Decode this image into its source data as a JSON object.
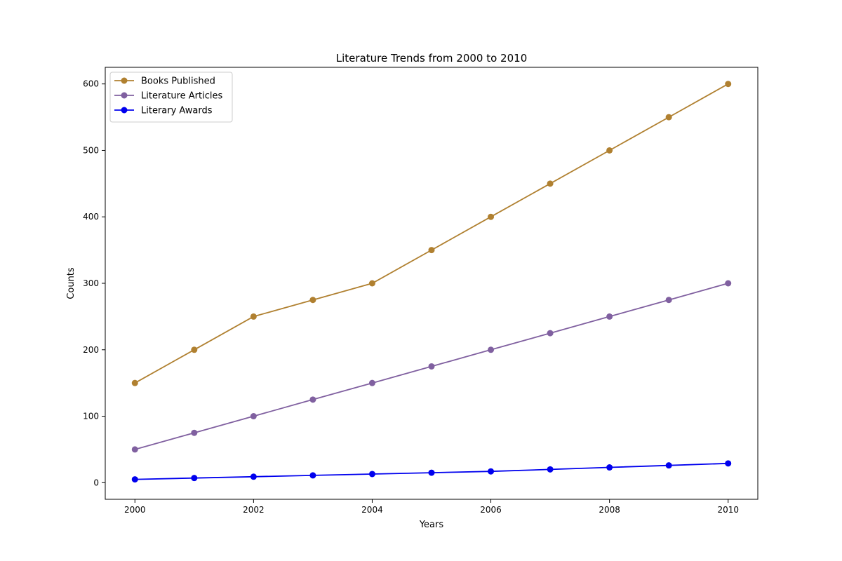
{
  "chart_data": {
    "type": "line",
    "title": "Literature Trends from 2000 to 2010",
    "xlabel": "Years",
    "ylabel": "Counts",
    "x": [
      2000,
      2001,
      2002,
      2003,
      2004,
      2005,
      2006,
      2007,
      2008,
      2009,
      2010
    ],
    "xlim": [
      1999.5,
      2010.5
    ],
    "ylim": [
      -25,
      625
    ],
    "xticks": [
      2000,
      2002,
      2004,
      2006,
      2008,
      2010
    ],
    "xtick_labels": [
      "2000",
      "2002",
      "2004",
      "2006",
      "2008",
      "2010"
    ],
    "yticks": [
      0,
      100,
      200,
      300,
      400,
      500,
      600
    ],
    "ytick_labels": [
      "0",
      "100",
      "200",
      "300",
      "400",
      "500",
      "600"
    ],
    "grid": false,
    "legend": "upper-left",
    "series": [
      {
        "name": "Books Published",
        "color": "#b08030",
        "marker": "circle",
        "values": [
          150,
          200,
          250,
          275,
          300,
          350,
          400,
          450,
          500,
          550,
          600
        ]
      },
      {
        "name": "Literature Articles",
        "color": "#8060a0",
        "marker": "circle",
        "values": [
          50,
          75,
          100,
          125,
          150,
          175,
          200,
          225,
          250,
          275,
          300
        ]
      },
      {
        "name": "Literary Awards",
        "color": "#0000ee",
        "marker": "circle",
        "values": [
          5,
          7,
          9,
          11,
          13,
          15,
          17,
          20,
          23,
          26,
          29
        ]
      }
    ]
  }
}
